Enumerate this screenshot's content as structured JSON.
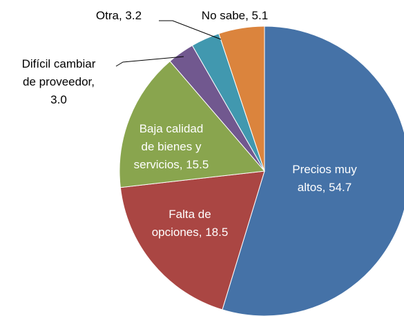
{
  "chart_data": {
    "type": "pie",
    "values": [
      54.7,
      18.5,
      15.5,
      3.0,
      3.2,
      5.1
    ],
    "value_labels": [
      "Precios muy altos, 54.7",
      "Falta de opciones, 18.5",
      "Baja calidad de bienes y servicios, 15.5",
      "Difícil cambiar de proveedor, 3.0",
      "Otra, 3.2",
      "No sabe, 5.1"
    ],
    "colors": [
      "#4572a7",
      "#aa4643",
      "#89a54e",
      "#71588f",
      "#4198af",
      "#db843d"
    ]
  }
}
